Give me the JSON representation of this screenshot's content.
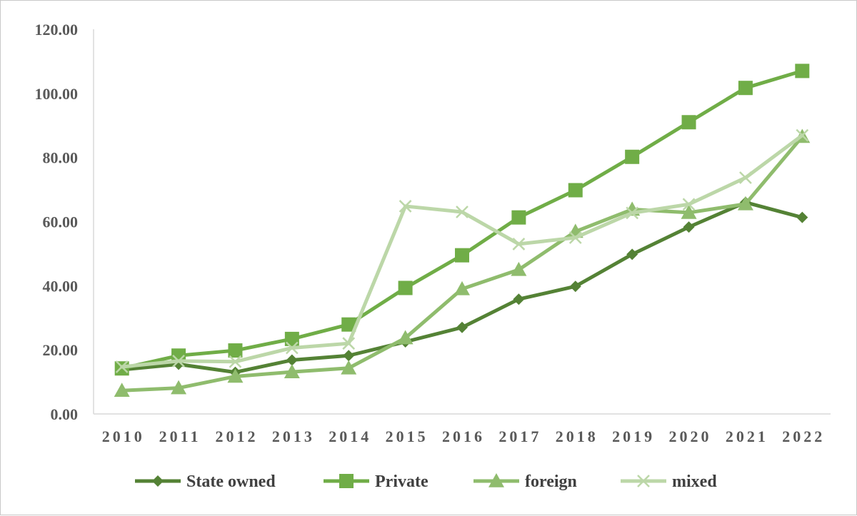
{
  "chart_data": {
    "type": "line",
    "title": "",
    "xlabel": "",
    "ylabel": "",
    "x": [
      "2010",
      "2011",
      "2012",
      "2013",
      "2014",
      "2015",
      "2016",
      "2017",
      "2018",
      "2019",
      "2020",
      "2021",
      "2022"
    ],
    "ylim": [
      0,
      120
    ],
    "yticks": [
      "0.00",
      "20.00",
      "40.00",
      "60.00",
      "80.00",
      "100.00",
      "120.00"
    ],
    "grid": false,
    "legend_position": "bottom",
    "series": [
      {
        "name": "State owned",
        "marker": "diamond",
        "color": "#548235",
        "values": [
          13.8,
          15.5,
          13.0,
          16.8,
          18.2,
          22.5,
          27.0,
          35.8,
          39.8,
          49.8,
          58.3,
          66.0,
          61.3
        ]
      },
      {
        "name": "Private",
        "marker": "square",
        "color": "#70ad47",
        "values": [
          14.2,
          18.2,
          19.8,
          23.4,
          27.9,
          39.3,
          49.5,
          61.3,
          69.8,
          80.2,
          91.0,
          101.7,
          107.0
        ]
      },
      {
        "name": "foreign",
        "marker": "triangle",
        "color": "#8fbc6d",
        "values": [
          7.3,
          8.1,
          11.7,
          13.1,
          14.3,
          23.7,
          39.0,
          45.0,
          56.9,
          63.8,
          62.8,
          65.5,
          86.5
        ]
      },
      {
        "name": "mixed",
        "marker": "x",
        "color": "#bcd7a8",
        "values": [
          14.7,
          16.5,
          16.3,
          20.6,
          22.0,
          64.8,
          63.0,
          53.0,
          55.0,
          62.7,
          65.4,
          73.7,
          86.9
        ]
      }
    ]
  }
}
